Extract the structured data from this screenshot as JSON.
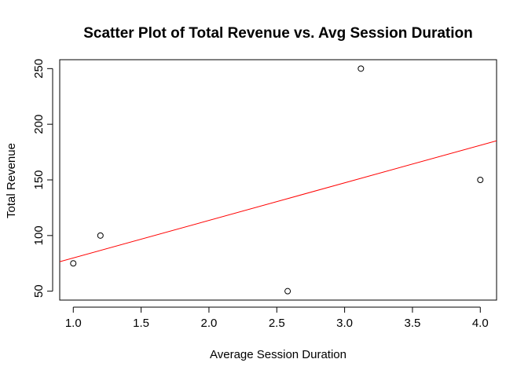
{
  "chart_data": {
    "type": "scatter",
    "title": "Scatter Plot of Total Revenue vs. Avg Session Duration",
    "xlabel": "Average Session Duration",
    "ylabel": "Total Revenue",
    "xlim": [
      0.9,
      4.12
    ],
    "ylim": [
      42,
      258
    ],
    "xticks": [
      "1.0",
      "1.5",
      "2.0",
      "2.5",
      "3.0",
      "3.5",
      "4.0"
    ],
    "yticks": [
      "50",
      "100",
      "150",
      "200",
      "250"
    ],
    "grid": false,
    "points": [
      {
        "x": 1.0,
        "y": 75
      },
      {
        "x": 1.2,
        "y": 100
      },
      {
        "x": 2.58,
        "y": 50
      },
      {
        "x": 3.12,
        "y": 250
      },
      {
        "x": 4.0,
        "y": 150
      }
    ],
    "regression_line": {
      "intercept": 46.1,
      "slope": 33.75,
      "color": "#ff0000"
    },
    "point_color": "#000000"
  }
}
